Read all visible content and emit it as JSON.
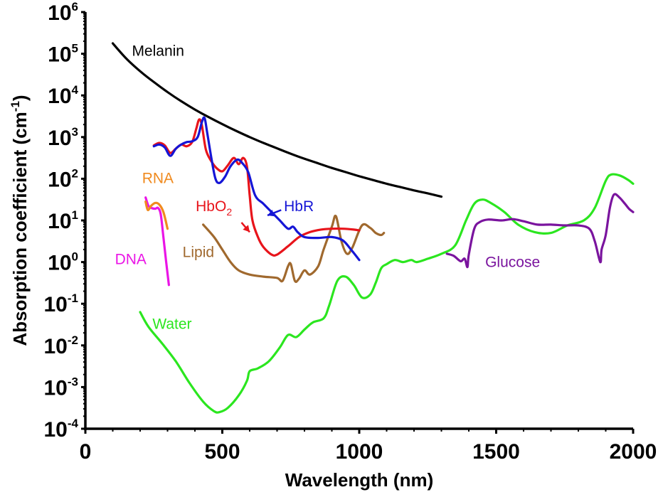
{
  "chart_data": {
    "type": "line",
    "title": "",
    "xlabel": "Wavelength (nm)",
    "ylabel": "Absorption coefficient (cm",
    "ylabel_superscript": "-1",
    "ylabel_suffix": ")",
    "xscale": "linear",
    "yscale": "log",
    "xlim": [
      0,
      2000
    ],
    "ylim": [
      0.0001,
      1000000
    ],
    "grid": false,
    "legend": "none (inline curve labels)",
    "x_ticks": [
      {
        "value": 0,
        "label": "0"
      },
      {
        "value": 500,
        "label": "500"
      },
      {
        "value": 1000,
        "label": "1000"
      },
      {
        "value": 1500,
        "label": "1500"
      },
      {
        "value": 2000,
        "label": "2000"
      }
    ],
    "y_ticks": [
      {
        "exp": 6,
        "base": "10",
        "sup": "6"
      },
      {
        "exp": 5,
        "base": "10",
        "sup": "5"
      },
      {
        "exp": 4,
        "base": "10",
        "sup": "4"
      },
      {
        "exp": 3,
        "base": "10",
        "sup": "3"
      },
      {
        "exp": 2,
        "base": "10",
        "sup": "2"
      },
      {
        "exp": 1,
        "base": "10",
        "sup": "1"
      },
      {
        "exp": 0,
        "base": "10",
        "sup": "0"
      },
      {
        "exp": -1,
        "base": "10",
        "sup": "-1"
      },
      {
        "exp": -2,
        "base": "10",
        "sup": "-2"
      },
      {
        "exp": -3,
        "base": "10",
        "sup": "-3"
      },
      {
        "exp": -4,
        "base": "10",
        "sup": "-4"
      }
    ],
    "series_value_format": "points are [wavelength_nm, log10(absorption_coefficient_cm^-1)]",
    "series": [
      {
        "name": "Melanin",
        "color": "#000000",
        "points": [
          [
            100,
            5.25
          ],
          [
            150,
            4.88
          ],
          [
            200,
            4.58
          ],
          [
            250,
            4.32
          ],
          [
            300,
            4.08
          ],
          [
            350,
            3.86
          ],
          [
            400,
            3.66
          ],
          [
            450,
            3.48
          ],
          [
            500,
            3.31
          ],
          [
            550,
            3.15
          ],
          [
            600,
            3.0
          ],
          [
            650,
            2.86
          ],
          [
            700,
            2.73
          ],
          [
            750,
            2.6
          ],
          [
            800,
            2.48
          ],
          [
            850,
            2.37
          ],
          [
            900,
            2.26
          ],
          [
            950,
            2.16
          ],
          [
            1000,
            2.06
          ],
          [
            1050,
            1.97
          ],
          [
            1100,
            1.88
          ],
          [
            1150,
            1.8
          ],
          [
            1200,
            1.72
          ],
          [
            1250,
            1.65
          ],
          [
            1300,
            1.57
          ]
        ],
        "label": "Melanin",
        "label_at": [
          170,
          4.95
        ],
        "label_color": "#000000"
      },
      {
        "name": "HbO2",
        "color": "#e8141b",
        "points": [
          [
            250,
            2.8
          ],
          [
            270,
            2.86
          ],
          [
            290,
            2.8
          ],
          [
            310,
            2.62
          ],
          [
            330,
            2.72
          ],
          [
            350,
            2.82
          ],
          [
            370,
            2.78
          ],
          [
            390,
            2.88
          ],
          [
            405,
            3.2
          ],
          [
            415,
            3.42
          ],
          [
            425,
            3.3
          ],
          [
            440,
            2.7
          ],
          [
            460,
            2.42
          ],
          [
            480,
            2.25
          ],
          [
            500,
            2.18
          ],
          [
            520,
            2.32
          ],
          [
            542,
            2.5
          ],
          [
            560,
            2.35
          ],
          [
            576,
            2.5
          ],
          [
            590,
            2.3
          ],
          [
            600,
            1.6
          ],
          [
            610,
            1.0
          ],
          [
            630,
            0.6
          ],
          [
            650,
            0.36
          ],
          [
            680,
            0.18
          ],
          [
            700,
            0.18
          ],
          [
            740,
            0.38
          ],
          [
            780,
            0.6
          ],
          [
            820,
            0.72
          ],
          [
            860,
            0.78
          ],
          [
            900,
            0.8
          ],
          [
            940,
            0.8
          ],
          [
            980,
            0.78
          ],
          [
            1000,
            0.76
          ]
        ],
        "label": "HbO",
        "label_sub": "2",
        "label_at": [
          403,
          1.22
        ],
        "label_color": "#e8141b",
        "annotation_arrow": {
          "from": [
            570,
            0.95
          ],
          "to": [
            600,
            0.72
          ]
        }
      },
      {
        "name": "HbR",
        "color": "#1515d6",
        "points": [
          [
            250,
            2.78
          ],
          [
            270,
            2.82
          ],
          [
            290,
            2.75
          ],
          [
            310,
            2.55
          ],
          [
            330,
            2.72
          ],
          [
            350,
            2.82
          ],
          [
            370,
            2.88
          ],
          [
            390,
            2.9
          ],
          [
            410,
            3.0
          ],
          [
            425,
            3.35
          ],
          [
            435,
            3.46
          ],
          [
            445,
            3.1
          ],
          [
            460,
            2.5
          ],
          [
            475,
            2.0
          ],
          [
            490,
            1.9
          ],
          [
            510,
            2.05
          ],
          [
            530,
            2.3
          ],
          [
            555,
            2.46
          ],
          [
            575,
            2.36
          ],
          [
            595,
            2.15
          ],
          [
            620,
            1.6
          ],
          [
            650,
            1.4
          ],
          [
            680,
            1.2
          ],
          [
            710,
            1.0
          ],
          [
            740,
            0.8
          ],
          [
            758,
            0.85
          ],
          [
            775,
            0.72
          ],
          [
            800,
            0.6
          ],
          [
            850,
            0.58
          ],
          [
            900,
            0.6
          ],
          [
            940,
            0.52
          ],
          [
            970,
            0.3
          ],
          [
            1000,
            0.05
          ]
        ],
        "label": "HbR",
        "label_at": [
          725,
          1.22
        ],
        "label_color": "#1515d6",
        "annotation_arrow": {
          "from": [
            715,
            1.25
          ],
          "to": [
            665,
            1.12
          ]
        }
      },
      {
        "name": "RNA",
        "color": "#f08a1e",
        "points": [
          [
            220,
            1.45
          ],
          [
            228,
            1.25
          ],
          [
            240,
            1.35
          ],
          [
            255,
            1.42
          ],
          [
            270,
            1.38
          ],
          [
            285,
            1.2
          ],
          [
            300,
            0.8
          ]
        ],
        "label": "RNA",
        "label_at": [
          207,
          1.9
        ],
        "label_color": "#f08a1e"
      },
      {
        "name": "DNA",
        "color": "#ea14e6",
        "points": [
          [
            220,
            1.55
          ],
          [
            230,
            1.35
          ],
          [
            240,
            1.3
          ],
          [
            255,
            1.28
          ],
          [
            265,
            1.3
          ],
          [
            275,
            1.15
          ],
          [
            285,
            0.6
          ],
          [
            295,
            0.0
          ],
          [
            305,
            -0.55
          ]
        ],
        "label": "DNA",
        "label_at": [
          108,
          -0.05
        ],
        "label_color": "#ea14e6"
      },
      {
        "name": "Lipid",
        "color": "#a0692e",
        "points": [
          [
            430,
            0.9
          ],
          [
            470,
            0.6
          ],
          [
            500,
            0.3
          ],
          [
            530,
            0.0
          ],
          [
            560,
            -0.2
          ],
          [
            600,
            -0.3
          ],
          [
            650,
            -0.35
          ],
          [
            700,
            -0.38
          ],
          [
            720,
            -0.45
          ],
          [
            740,
            -0.1
          ],
          [
            750,
            -0.05
          ],
          [
            765,
            -0.45
          ],
          [
            780,
            -0.4
          ],
          [
            800,
            -0.2
          ],
          [
            820,
            -0.3
          ],
          [
            850,
            -0.1
          ],
          [
            870,
            0.3
          ],
          [
            900,
            0.85
          ],
          [
            915,
            1.1
          ],
          [
            935,
            0.5
          ],
          [
            955,
            0.2
          ],
          [
            975,
            0.35
          ],
          [
            1010,
            0.88
          ],
          [
            1040,
            0.82
          ],
          [
            1060,
            0.7
          ],
          [
            1080,
            0.65
          ],
          [
            1090,
            0.7
          ]
        ],
        "label": "Lipid",
        "label_at": [
          355,
          0.12
        ],
        "label_color": "#a0692e"
      },
      {
        "name": "Water",
        "color": "#2be61f",
        "points": [
          [
            200,
            -1.2
          ],
          [
            230,
            -1.55
          ],
          [
            280,
            -1.95
          ],
          [
            330,
            -2.38
          ],
          [
            380,
            -2.9
          ],
          [
            430,
            -3.35
          ],
          [
            470,
            -3.58
          ],
          [
            490,
            -3.6
          ],
          [
            520,
            -3.5
          ],
          [
            560,
            -3.2
          ],
          [
            590,
            -2.85
          ],
          [
            600,
            -2.62
          ],
          [
            630,
            -2.55
          ],
          [
            670,
            -2.38
          ],
          [
            710,
            -2.05
          ],
          [
            740,
            -1.75
          ],
          [
            770,
            -1.8
          ],
          [
            800,
            -1.62
          ],
          [
            830,
            -1.45
          ],
          [
            870,
            -1.35
          ],
          [
            890,
            -1.05
          ],
          [
            920,
            -0.45
          ],
          [
            950,
            -0.35
          ],
          [
            980,
            -0.55
          ],
          [
            1010,
            -0.85
          ],
          [
            1040,
            -0.78
          ],
          [
            1060,
            -0.5
          ],
          [
            1080,
            -0.15
          ],
          [
            1100,
            -0.05
          ],
          [
            1130,
            0.05
          ],
          [
            1160,
            0.0
          ],
          [
            1190,
            0.05
          ],
          [
            1210,
            0.0
          ],
          [
            1250,
            0.08
          ],
          [
            1300,
            0.2
          ],
          [
            1350,
            0.4
          ],
          [
            1390,
            1.0
          ],
          [
            1420,
            1.4
          ],
          [
            1450,
            1.5
          ],
          [
            1480,
            1.42
          ],
          [
            1530,
            1.2
          ],
          [
            1580,
            0.9
          ],
          [
            1640,
            0.72
          ],
          [
            1700,
            0.7
          ],
          [
            1760,
            0.88
          ],
          [
            1820,
            1.0
          ],
          [
            1860,
            1.3
          ],
          [
            1900,
            1.95
          ],
          [
            1920,
            2.1
          ],
          [
            1950,
            2.08
          ],
          [
            1980,
            1.98
          ],
          [
            2000,
            1.88
          ]
        ],
        "label": "Water",
        "label_at": [
          245,
          -1.6
        ],
        "label_color": "#2be61f"
      },
      {
        "name": "Glucose",
        "color": "#7a149e",
        "points": [
          [
            1320,
            0.2
          ],
          [
            1345,
            0.15
          ],
          [
            1370,
            0.02
          ],
          [
            1385,
            0.08
          ],
          [
            1395,
            -0.12
          ],
          [
            1400,
            0.18
          ],
          [
            1420,
            0.8
          ],
          [
            1440,
            0.96
          ],
          [
            1470,
            1.02
          ],
          [
            1520,
            1.0
          ],
          [
            1560,
            1.03
          ],
          [
            1600,
            0.98
          ],
          [
            1650,
            0.9
          ],
          [
            1700,
            0.9
          ],
          [
            1750,
            0.88
          ],
          [
            1800,
            0.88
          ],
          [
            1840,
            0.8
          ],
          [
            1860,
            0.5
          ],
          [
            1880,
            0.0
          ],
          [
            1885,
            0.3
          ],
          [
            1900,
            0.65
          ],
          [
            1915,
            1.3
          ],
          [
            1930,
            1.62
          ],
          [
            1950,
            1.55
          ],
          [
            1970,
            1.4
          ],
          [
            1985,
            1.28
          ],
          [
            2000,
            1.2
          ]
        ],
        "label": "Glucose",
        "label_at": [
          1460,
          -0.12
        ],
        "label_color": "#7a149e"
      }
    ]
  }
}
